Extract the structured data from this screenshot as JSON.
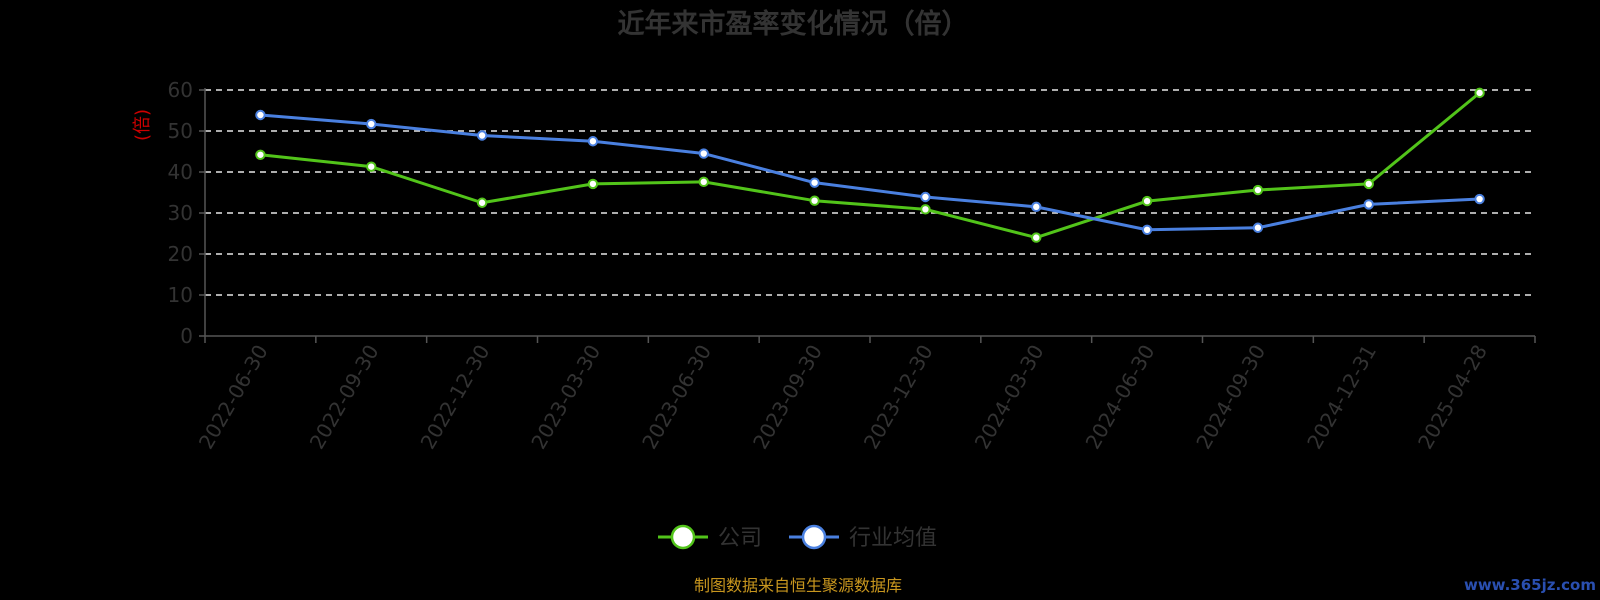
{
  "chart_data": {
    "type": "line",
    "title": "近年来市盈率变化情况（倍）",
    "ylabel": "(倍)",
    "xlabel": "",
    "categories": [
      "2022-06-30",
      "2022-09-30",
      "2022-12-30",
      "2023-03-30",
      "2023-06-30",
      "2023-09-30",
      "2023-12-30",
      "2024-03-30",
      "2024-06-30",
      "2024-09-30",
      "2024-12-31",
      "2025-04-28"
    ],
    "ylim": [
      0,
      60
    ],
    "yticks": [
      0,
      10,
      20,
      30,
      40,
      50,
      60
    ],
    "grid": true,
    "legend_position": "bottom-center",
    "series": [
      {
        "name": "公司",
        "color": "#52c41a",
        "values": [
          44.2,
          41.3,
          32.5,
          37.1,
          37.6,
          33.0,
          30.9,
          24.0,
          32.9,
          35.6,
          37.1,
          59.3
        ]
      },
      {
        "name": "行业均值",
        "color": "#4a80e0",
        "values": [
          53.9,
          51.7,
          48.9,
          47.5,
          44.5,
          37.4,
          33.9,
          31.5,
          25.9,
          26.4,
          32.1,
          33.4
        ]
      }
    ]
  },
  "footer": {
    "source": "制图数据来自恒生聚源数据库",
    "watermark": "www.365jz.com"
  }
}
